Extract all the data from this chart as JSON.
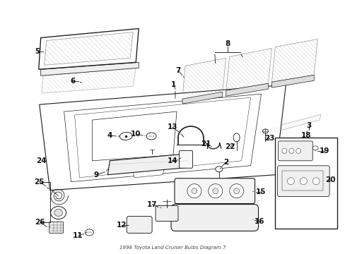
{
  "bg_color": "#ffffff",
  "line_color": "#1a1a1a",
  "fig_width": 4.89,
  "fig_height": 3.6,
  "dpi": 100,
  "label_fontsize": 7.5,
  "title_text": "1998 Toyota Land Cruiser Bulbs Diagram 7",
  "title_fontsize": 5.0
}
